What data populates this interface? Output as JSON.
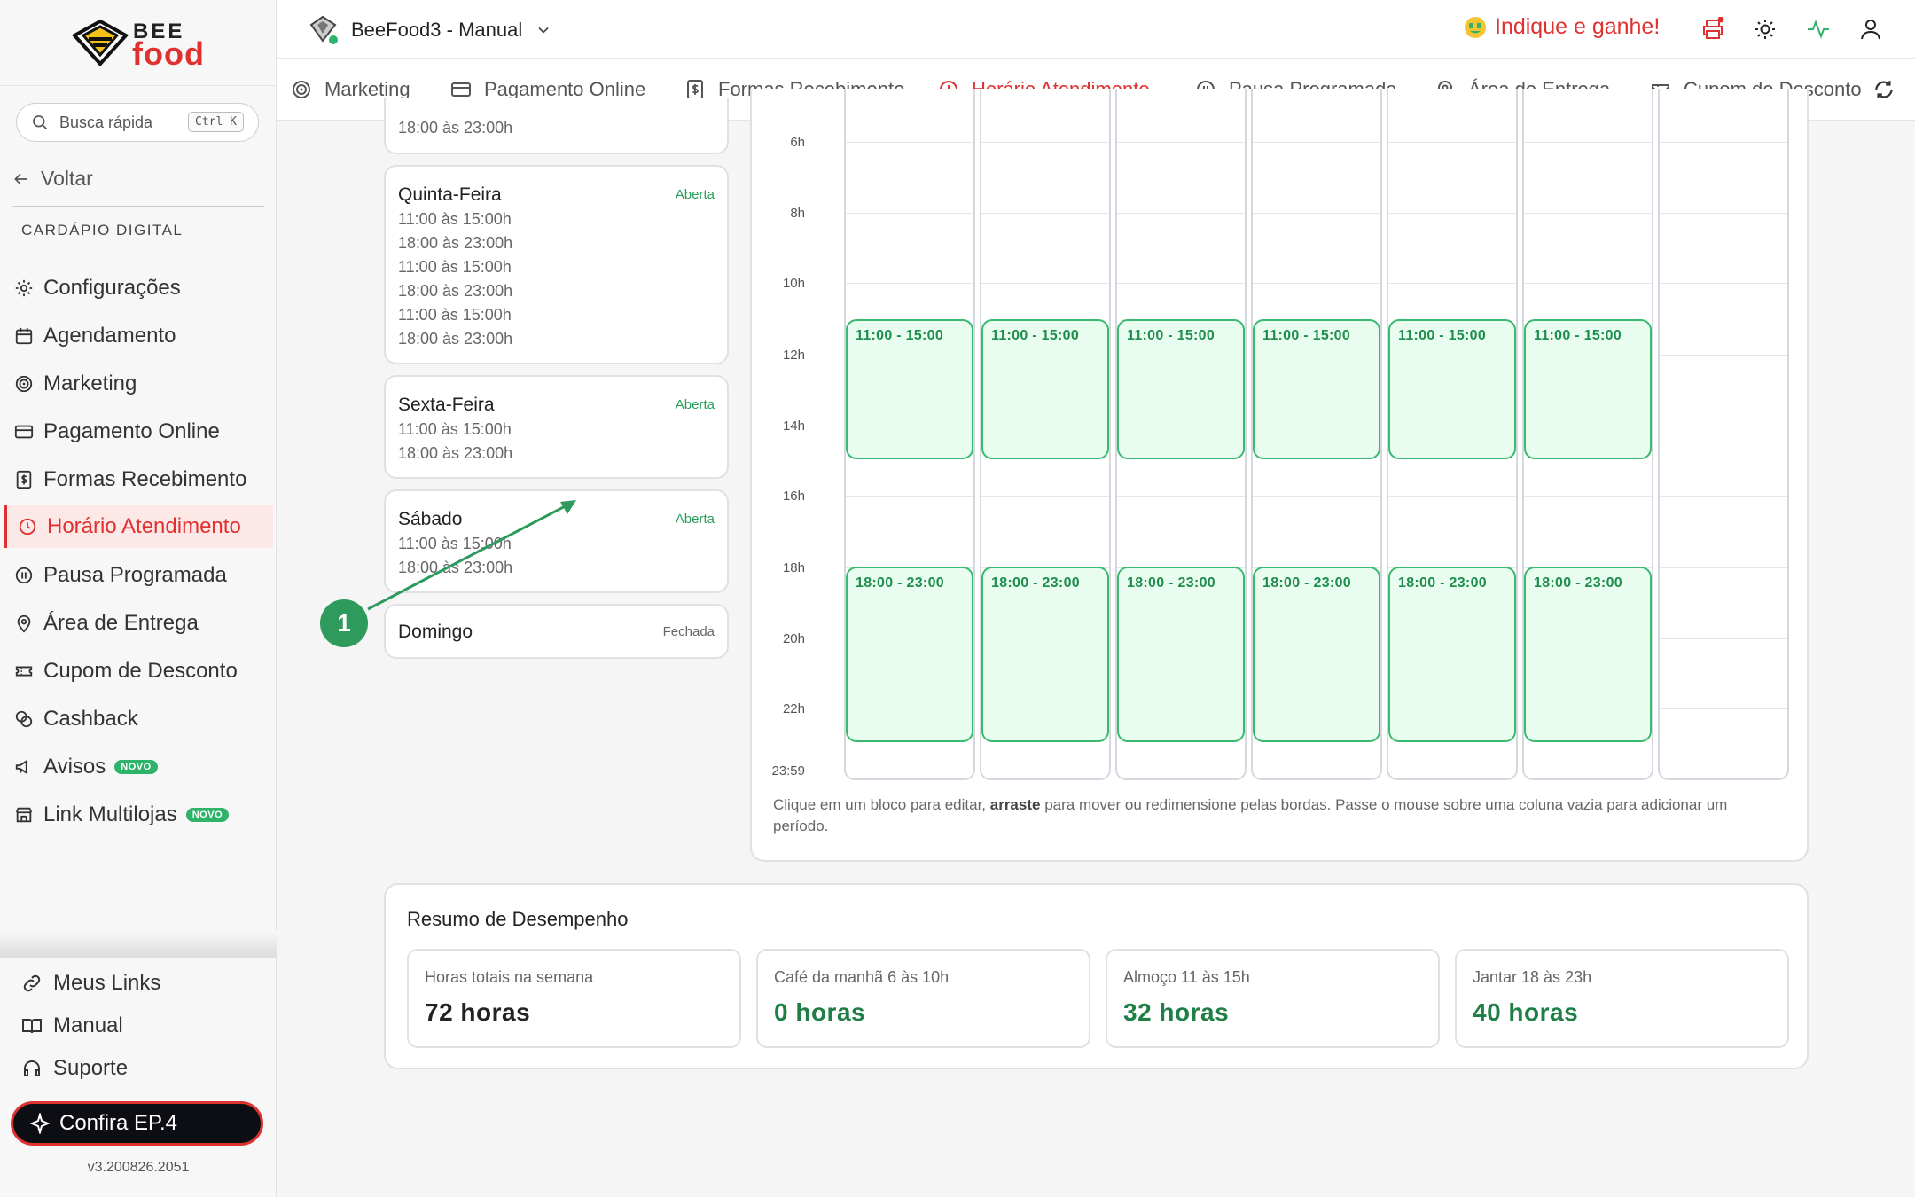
{
  "sidebar": {
    "logo_top": "BEE",
    "logo_bottom": "food",
    "search_placeholder": "Busca rápida",
    "search_shortcut": "Ctrl K",
    "back_label": "Voltar",
    "section_label": "CARDÁPIO DIGITAL",
    "items": [
      {
        "label": "Configurações",
        "icon": "gear-icon"
      },
      {
        "label": "Agendamento",
        "icon": "calendar-icon"
      },
      {
        "label": "Marketing",
        "icon": "target-icon"
      },
      {
        "label": "Pagamento Online",
        "icon": "credit-card-icon"
      },
      {
        "label": "Formas Recebimento",
        "icon": "money-doc-icon"
      },
      {
        "label": "Horário Atendimento",
        "icon": "clock-icon",
        "active": true
      },
      {
        "label": "Pausa Programada",
        "icon": "pause-icon"
      },
      {
        "label": "Área de Entrega",
        "icon": "map-pin-icon"
      },
      {
        "label": "Cupom de Desconto",
        "icon": "ticket-icon"
      },
      {
        "label": "Cashback",
        "icon": "coins-icon"
      },
      {
        "label": "Avisos",
        "icon": "megaphone-icon",
        "badge": "NOVO"
      },
      {
        "label": "Link Multilojas",
        "icon": "store-icon",
        "badge": "NOVO"
      }
    ],
    "bottom_items": [
      {
        "label": "Meus Links",
        "icon": "link-icon"
      },
      {
        "label": "Manual",
        "icon": "book-icon"
      },
      {
        "label": "Suporte",
        "icon": "headset-icon"
      }
    ],
    "cta_label": "Confira EP.4",
    "version": "v3.200826.2051"
  },
  "topbar": {
    "store_name": "BeeFood3 - Manual",
    "referral_label": "Indique e ganhe!"
  },
  "tabs": [
    {
      "label": "Marketing",
      "icon": "target-icon"
    },
    {
      "label": "Pagamento Online",
      "icon": "credit-card-icon"
    },
    {
      "label": "Formas Recebimento",
      "icon": "money-doc-icon"
    },
    {
      "label": "Horário Atendimento",
      "icon": "clock-icon",
      "active": true
    },
    {
      "label": "Pausa Programada",
      "icon": "pause-icon"
    },
    {
      "label": "Área de Entrega",
      "icon": "map-pin-icon"
    },
    {
      "label": "Cupom de Desconto",
      "icon": "ticket-icon"
    }
  ],
  "days": {
    "partial_slot": "18:00 às 23:00h",
    "quinta": {
      "name": "Quinta-Feira",
      "status": "Aberta",
      "slots": [
        "11:00 às 15:00h",
        "18:00 às 23:00h",
        "11:00 às 15:00h",
        "18:00 às 23:00h",
        "11:00 às 15:00h",
        "18:00 às 23:00h"
      ]
    },
    "sexta": {
      "name": "Sexta-Feira",
      "status": "Aberta",
      "slots": [
        "11:00 às 15:00h",
        "18:00 às 23:00h"
      ]
    },
    "sabado": {
      "name": "Sábado",
      "status": "Aberta",
      "slots": [
        "11:00 às 15:00h",
        "18:00 às 23:00h"
      ]
    },
    "domingo": {
      "name": "Domingo",
      "status": "Fechada"
    }
  },
  "step_number": "1",
  "calendar": {
    "hour_labels": [
      "6h",
      "8h",
      "10h",
      "12h",
      "14h",
      "16h",
      "18h",
      "20h",
      "22h",
      "23:59"
    ],
    "block_labels": [
      "11:00 - 15:00",
      "18:00 - 23:00"
    ],
    "hint_pre": "Clique em um bloco para editar, ",
    "hint_bold": "arraste",
    "hint_post": " para mover ou redimensione pelas bordas. Passe o mouse sobre uma coluna vazia para adicionar um período."
  },
  "summary": {
    "title": "Resumo de Desempenho",
    "cards": [
      {
        "label": "Horas totais na semana",
        "value": "72 horas"
      },
      {
        "label": "Café da manhã 6 às 10h",
        "value": "0 horas"
      },
      {
        "label": "Almoço 11 às 15h",
        "value": "32 horas"
      },
      {
        "label": "Jantar 18 às 23h",
        "value": "40 horas"
      }
    ]
  },
  "colors": {
    "accent": "#e03131",
    "success": "#2a9d5c",
    "block_fill": "#e8fcef"
  }
}
